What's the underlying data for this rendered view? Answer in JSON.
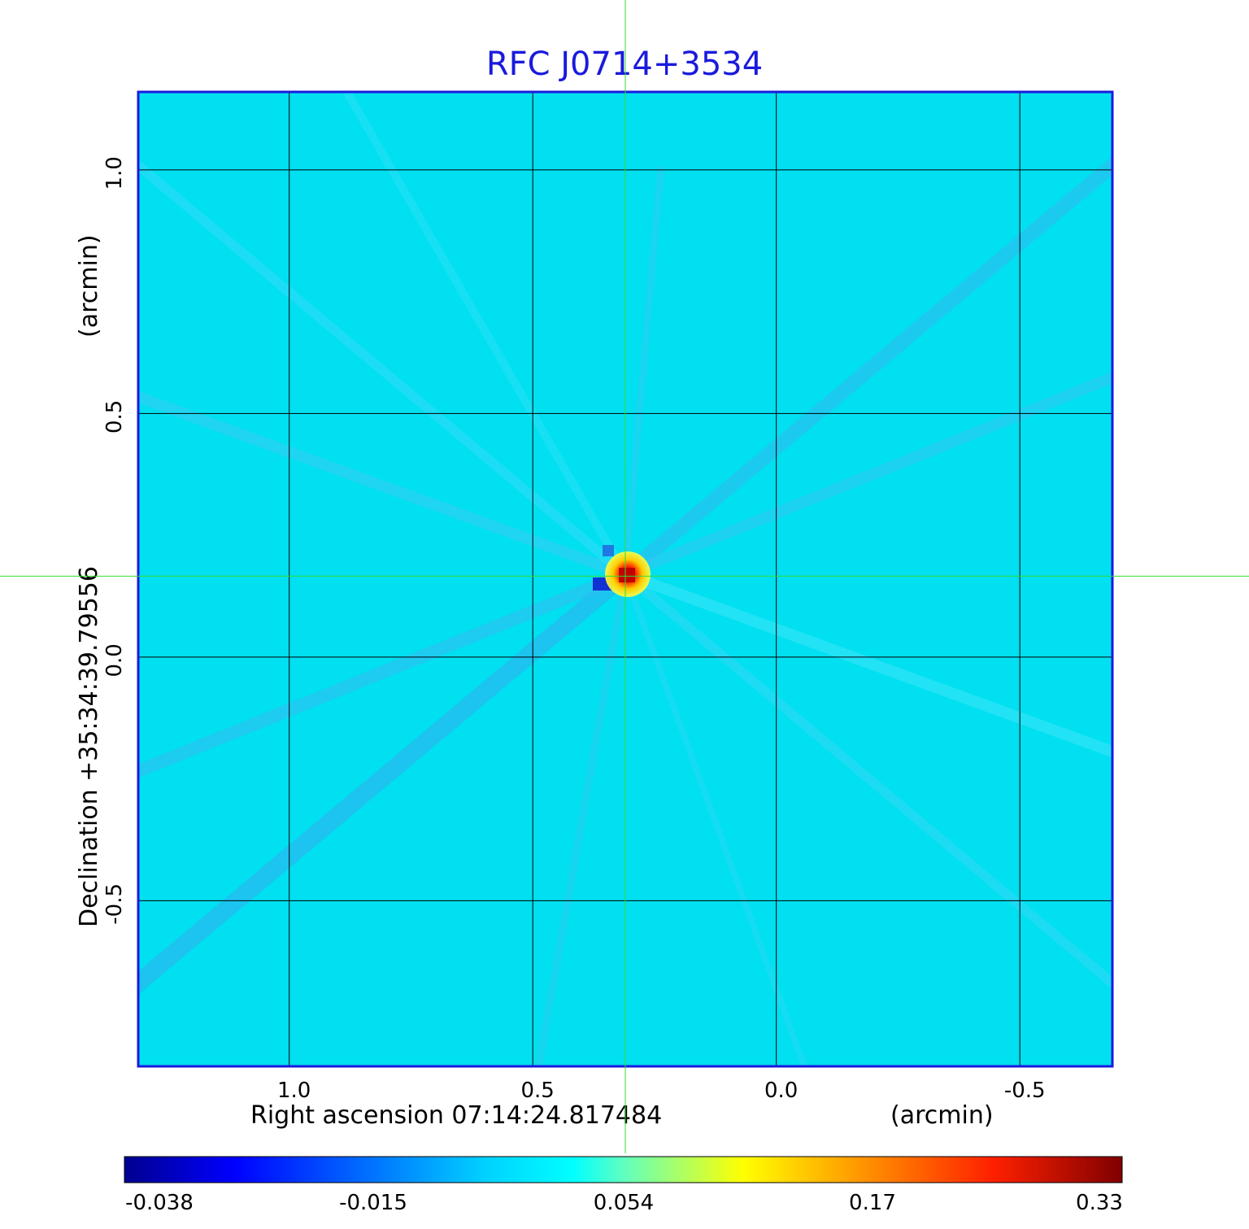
{
  "chart_data": {
    "type": "heatmap",
    "title": "RFC J0714+3534",
    "xlabel_prefix": "Right ascension  07:14:24.817484",
    "xlabel_unit": "(arcmin)",
    "ylabel_prefix": "Declination  +35:34:39.79556",
    "ylabel_unit": "(arcmin)",
    "x_ticks": [
      "1.0",
      "0.5",
      "0.0",
      "-0.5"
    ],
    "x_tick_values": [
      1.0,
      0.5,
      0.0,
      -0.5
    ],
    "y_ticks": [
      "1.0",
      "0.5",
      "0.0",
      "-0.5"
    ],
    "y_tick_values": [
      1.0,
      0.5,
      0.0,
      -0.5
    ],
    "xlim": [
      1.31,
      -0.69
    ],
    "ylim": [
      -0.84,
      1.16
    ],
    "grid": true,
    "crosshair": {
      "x": 0.31,
      "y": 0.166
    },
    "peak": {
      "x": 0.31,
      "y": 0.17,
      "value": 0.33
    },
    "colorbar": {
      "ticks": [
        "-0.038",
        "-0.015",
        "0.054",
        "0.17",
        "0.33"
      ],
      "tick_values": [
        -0.038,
        -0.015,
        0.054,
        0.17,
        0.33
      ],
      "colormap": "jet"
    },
    "colors": {
      "title": "#1a1add",
      "frame": "#1a1add",
      "grid": "#000000",
      "crosshair": "#33dd33",
      "background": "#00e0f0"
    }
  }
}
